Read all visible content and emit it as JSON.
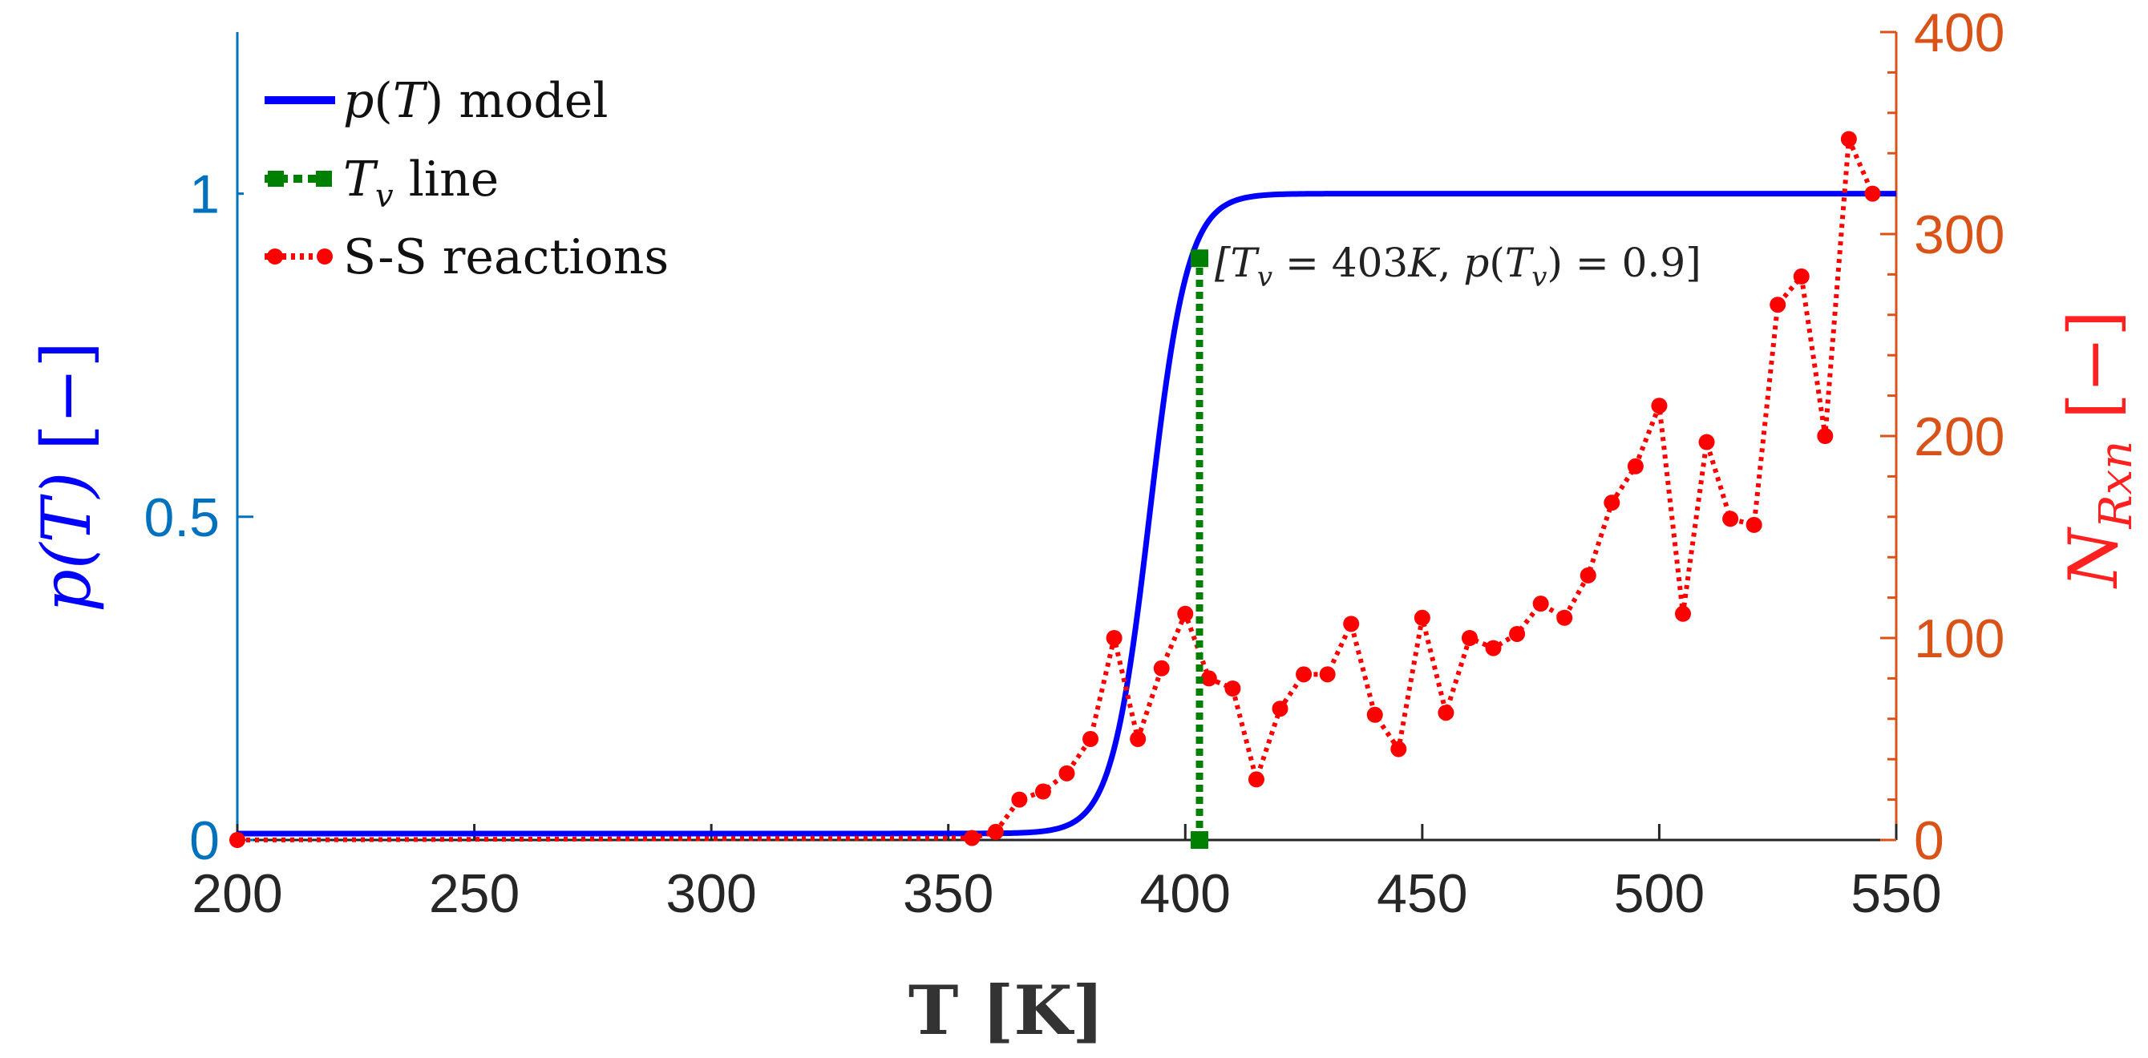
{
  "chart_data": {
    "type": "line",
    "xlabel": "T [K]",
    "ylabel_left": "p(T) [−]",
    "ylabel_right": "N_Rxn [−]",
    "xlim": [
      200,
      550
    ],
    "ylim_left": [
      0,
      1.25
    ],
    "ylim_right": [
      0,
      400
    ],
    "xticks": [
      200,
      250,
      300,
      350,
      400,
      450,
      500,
      550
    ],
    "xtick_labels": [
      "200",
      "250",
      "300",
      "350",
      "400",
      "450",
      "500",
      "550"
    ],
    "yticks_left": [
      0,
      0.5,
      1
    ],
    "ytick_labels_left": [
      "0",
      "0.5",
      "1"
    ],
    "yticks_right": [
      0,
      100,
      200,
      300,
      400
    ],
    "ytick_labels_right": [
      "0",
      "100",
      "200",
      "300",
      "400"
    ],
    "legend": {
      "placement": "top-left",
      "entries": [
        {
          "label": "p(T) model",
          "color": "#0000FF",
          "style": "solid"
        },
        {
          "label": "T_v line",
          "color": "#008000",
          "style": "dashed-square"
        },
        {
          "label": "S-S reactions",
          "color": "#FF0000",
          "style": "dotted-circle"
        }
      ]
    },
    "annotation": "[T_v = 403K, p(T_v) = 0.9]",
    "series": [
      {
        "name": "p(T) model",
        "axis": "left",
        "color": "#0000FF",
        "model": "logistic",
        "offset": 0.01,
        "amplitude": 0.99,
        "midpoint": 392.5,
        "rate": 0.25
      },
      {
        "name": "T_v line",
        "axis": "left",
        "color": "#008000",
        "x": [
          403,
          403
        ],
        "y": [
          0,
          0.9
        ]
      },
      {
        "name": "S-S reactions",
        "axis": "right",
        "color": "#FF0000",
        "x": [
          200,
          355,
          360,
          365,
          370,
          375,
          380,
          385,
          390,
          395,
          400,
          405,
          410,
          415,
          420,
          425,
          430,
          435,
          440,
          445,
          450,
          455,
          460,
          465,
          470,
          475,
          480,
          485,
          490,
          495,
          500,
          505,
          510,
          515,
          520,
          525,
          530,
          535,
          540,
          545
        ],
        "y": [
          0,
          1,
          4,
          20,
          24,
          33,
          50,
          100,
          50,
          85,
          112,
          80,
          75,
          30,
          65,
          82,
          82,
          107,
          62,
          45,
          110,
          63,
          100,
          95,
          102,
          117,
          110,
          131,
          167,
          185,
          215,
          112,
          197,
          159,
          156,
          265,
          279,
          200,
          347,
          320
        ]
      }
    ]
  },
  "colors": {
    "left_axis": "#0072BD",
    "right_axis": "#D95319",
    "model": "#0000FF",
    "tv_line": "#008000",
    "reactions": "#FF0000"
  }
}
